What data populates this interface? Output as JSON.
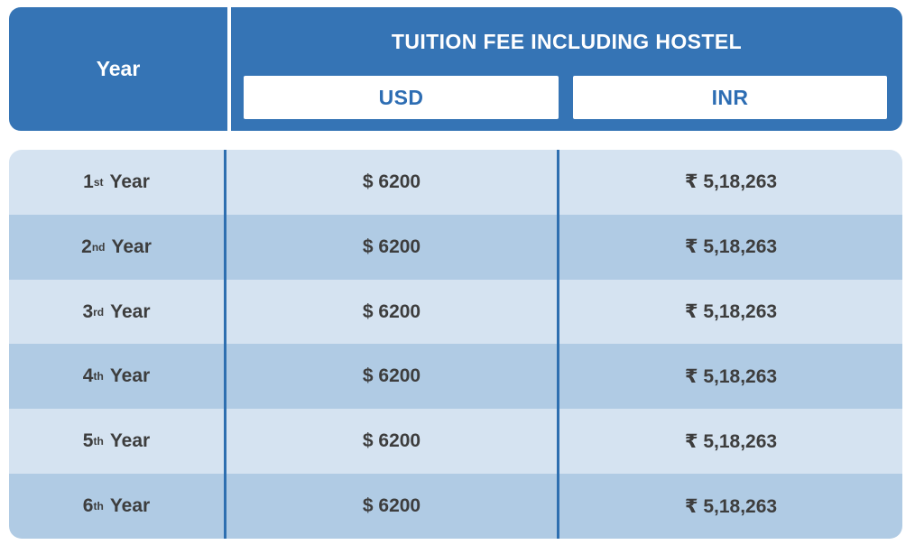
{
  "header": {
    "year_label": "Year",
    "fee_title": "TUITION FEE INCLUDING HOSTEL",
    "usd_label": "USD",
    "inr_label": "INR"
  },
  "table": {
    "rows": [
      {
        "ordinal": "1",
        "suffix": "st",
        "year_word": "Year",
        "usd": "$ 6200",
        "inr": "₹ 5,18,263"
      },
      {
        "ordinal": "2",
        "suffix": "nd",
        "year_word": "Year",
        "usd": "$ 6200",
        "inr": "₹ 5,18,263"
      },
      {
        "ordinal": "3",
        "suffix": "rd",
        "year_word": "Year",
        "usd": "$ 6200",
        "inr": "₹ 5,18,263"
      },
      {
        "ordinal": "4",
        "suffix": "th",
        "year_word": "Year",
        "usd": "$ 6200",
        "inr": "₹ 5,18,263"
      },
      {
        "ordinal": "5",
        "suffix": "th",
        "year_word": "Year",
        "usd": "$ 6200",
        "inr": "₹ 5,18,263"
      },
      {
        "ordinal": "6",
        "suffix": "th",
        "year_word": "Year",
        "usd": "$ 6200",
        "inr": "₹ 5,18,263"
      }
    ]
  },
  "colors": {
    "header_blue": "#3574b5",
    "label_blue": "#2d6db3",
    "row_light": "#d5e3f1",
    "row_dark": "#b0cbe4",
    "divider_blue": "#2e6fb0",
    "text_dark": "#3d3d3d"
  },
  "chart_data": {
    "type": "table",
    "title": "TUITION FEE INCLUDING HOSTEL",
    "columns": [
      "Year",
      "USD",
      "INR"
    ],
    "rows": [
      [
        "1st Year",
        "$ 6200",
        "₹ 5,18,263"
      ],
      [
        "2nd Year",
        "$ 6200",
        "₹ 5,18,263"
      ],
      [
        "3rd Year",
        "$ 6200",
        "₹ 5,18,263"
      ],
      [
        "4th Year",
        "$ 6200",
        "₹ 5,18,263"
      ],
      [
        "5th Year",
        "$ 6200",
        "₹ 5,18,263"
      ],
      [
        "6th Year",
        "$ 6200",
        "₹ 5,18,263"
      ]
    ],
    "layout": {
      "usd_value_per_year": 6200,
      "inr_value_per_year": 518263,
      "row_striping": "alternating light/dark blue"
    }
  }
}
